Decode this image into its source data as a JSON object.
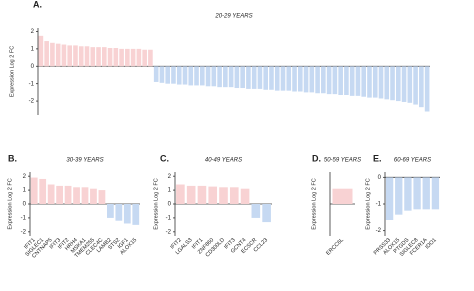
{
  "chart_data": [
    {
      "type": "bar",
      "panel_label": "A.",
      "title": "20-29 YEARS",
      "y_label": "Expression Log 2 FC",
      "categories": [
        null,
        null,
        null,
        null,
        null,
        null,
        null,
        null,
        null,
        null,
        null,
        null,
        null,
        null,
        null,
        null,
        null,
        null,
        null,
        null,
        null,
        null,
        null,
        null,
        null,
        null,
        null,
        null,
        null,
        null,
        null,
        null,
        null,
        null,
        null,
        null,
        null,
        null,
        null,
        null,
        null,
        null,
        null,
        null,
        null,
        null,
        null,
        null,
        null,
        null,
        null,
        null,
        null,
        null,
        null,
        null,
        null,
        null,
        null,
        null,
        null,
        null,
        null,
        null,
        null,
        null,
        null,
        null
      ],
      "values": [
        1.75,
        1.45,
        1.35,
        1.3,
        1.25,
        1.2,
        1.2,
        1.15,
        1.15,
        1.1,
        1.1,
        1.1,
        1.05,
        1.05,
        1.0,
        1.0,
        1.0,
        1.0,
        0.95,
        0.95,
        -0.9,
        -0.95,
        -1.0,
        -1.0,
        -1.05,
        -1.05,
        -1.1,
        -1.1,
        -1.1,
        -1.15,
        -1.15,
        -1.2,
        -1.2,
        -1.2,
        -1.25,
        -1.25,
        -1.3,
        -1.3,
        -1.3,
        -1.35,
        -1.35,
        -1.4,
        -1.4,
        -1.4,
        -1.45,
        -1.45,
        -1.5,
        -1.5,
        -1.55,
        -1.55,
        -1.6,
        -1.6,
        -1.65,
        -1.65,
        -1.7,
        -1.7,
        -1.75,
        -1.8,
        -1.8,
        -1.85,
        -1.9,
        -1.95,
        -2.0,
        -2.05,
        -2.1,
        -2.2,
        -2.35,
        -2.6
      ],
      "positive_color": "#f8d2d3",
      "negative_color": "#c6d9f2",
      "ylim": [
        -2.8,
        2.2
      ],
      "yticks": [
        2,
        1,
        0,
        -1,
        -2
      ]
    },
    {
      "type": "bar",
      "panel_label": "B.",
      "title": "30-39 YEARS",
      "y_label": "Expression Log 2 FC",
      "categories": [
        "IFIT1",
        "SIGLEC1",
        "CNTNAP5",
        "IFIT3",
        "IFIT2",
        "HRH4",
        "MSKA1",
        "TMEM255",
        "CLEC4C",
        "LAMB2",
        "STS2",
        "IGF1",
        "ALOX15"
      ],
      "values": [
        1.9,
        1.8,
        1.4,
        1.3,
        1.3,
        1.2,
        1.2,
        1.1,
        1.0,
        -1.0,
        -1.2,
        -1.4,
        -1.5
      ],
      "positive_color": "#f8d2d3",
      "negative_color": "#c6d9f2",
      "ylim": [
        -2.3,
        2.3
      ],
      "yticks": [
        2,
        1,
        0,
        -1,
        -2
      ]
    },
    {
      "type": "bar",
      "panel_label": "C.",
      "title": "40-49 YEARS",
      "y_label": "Expression Log 2 FC",
      "categories": [
        "IFIT2",
        "LGALS3",
        "IFIT1",
        "ZNF860",
        "CD300LD",
        "IFIT3",
        "GCNT4",
        "ECSCR",
        "CCL23"
      ],
      "values": [
        1.4,
        1.3,
        1.3,
        1.25,
        1.2,
        1.2,
        1.1,
        -1.0,
        -1.3
      ],
      "positive_color": "#f8d2d3",
      "negative_color": "#c6d9f2",
      "ylim": [
        -2.3,
        2.3
      ],
      "yticks": [
        2,
        1,
        0,
        -1,
        -2
      ]
    },
    {
      "type": "bar",
      "panel_label": "D.",
      "title": "50-59 YEARS",
      "y_label": "Expression Log 2 FC",
      "categories": [
        "ERCC6L"
      ],
      "values": [
        1.1
      ],
      "positive_color": "#f8d2d3",
      "negative_color": "#c6d9f2",
      "ylim": [
        -2.3,
        2.3
      ]
    },
    {
      "type": "bar",
      "panel_label": "E.",
      "title": "60-69 YEARS",
      "y_label": "Expression Log 2 FC",
      "categories": [
        "PRSS33",
        "ALOX15",
        "PTGDS",
        "SIGLEC8",
        "FCER1A",
        "IDO1"
      ],
      "values": [
        -1.6,
        -1.4,
        -1.25,
        -1.2,
        -1.2,
        -1.2
      ],
      "positive_color": "#f8d2d3",
      "negative_color": "#c6d9f2",
      "ylim": [
        -2.2,
        0.2
      ],
      "yticks": [
        0,
        -1,
        -2
      ]
    }
  ]
}
